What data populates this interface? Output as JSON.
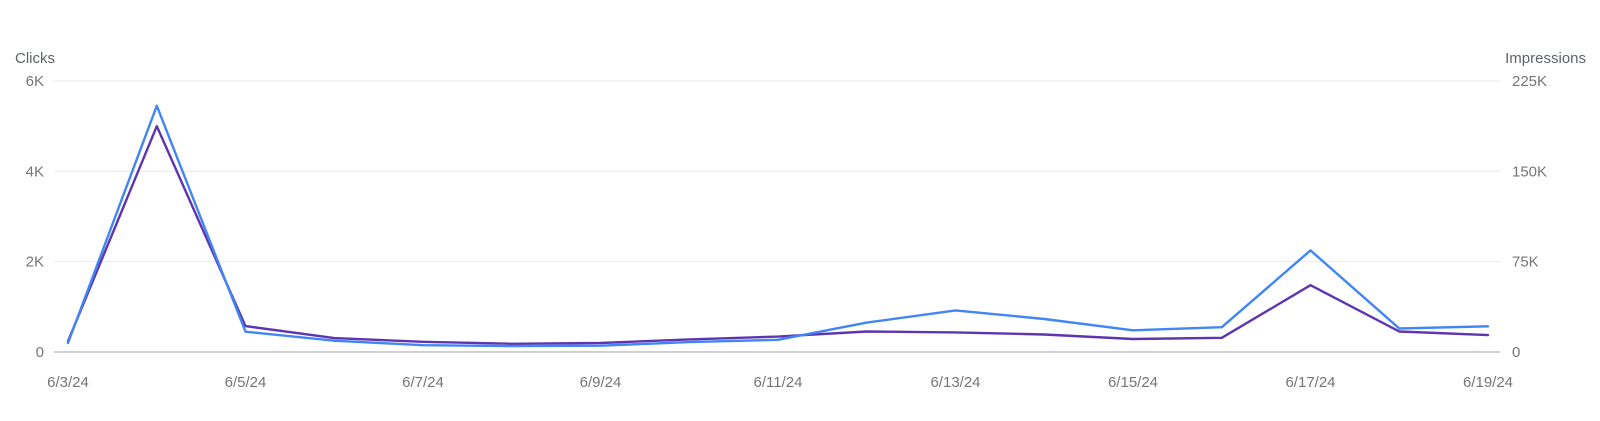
{
  "chart_data": {
    "type": "line",
    "x": [
      "6/3/24",
      "6/4/24",
      "6/5/24",
      "6/6/24",
      "6/7/24",
      "6/8/24",
      "6/9/24",
      "6/10/24",
      "6/11/24",
      "6/12/24",
      "6/13/24",
      "6/14/24",
      "6/15/24",
      "6/16/24",
      "6/17/24",
      "6/18/24",
      "6/19/24"
    ],
    "x_tick_labels": [
      "6/3/24",
      "6/5/24",
      "6/7/24",
      "6/9/24",
      "6/11/24",
      "6/13/24",
      "6/15/24",
      "6/17/24",
      "6/19/24"
    ],
    "left_axis": {
      "title": "Clicks",
      "range": [
        0,
        6000
      ],
      "ticks": [
        0,
        2000,
        4000,
        6000
      ],
      "tick_labels": [
        "0",
        "2K",
        "4K",
        "6K"
      ]
    },
    "right_axis": {
      "title": "Impressions",
      "range": [
        0,
        225000
      ],
      "ticks": [
        0,
        75000,
        150000,
        225000
      ],
      "tick_labels": [
        "0",
        "75K",
        "150K",
        "225K"
      ]
    },
    "series": [
      {
        "name": "Clicks",
        "axis": "left",
        "color": "#4285f4",
        "values": [
          200,
          5450,
          450,
          250,
          150,
          130,
          140,
          220,
          270,
          650,
          920,
          730,
          480,
          550,
          2250,
          520,
          570
        ]
      },
      {
        "name": "Impressions",
        "axis": "right",
        "color": "#5e35b1",
        "values": [
          9000,
          187500,
          21500,
          11500,
          8500,
          6800,
          7500,
          10500,
          12800,
          17000,
          16300,
          14500,
          10800,
          11800,
          55500,
          17000,
          14000
        ]
      }
    ],
    "grid": true,
    "legend": "none"
  }
}
